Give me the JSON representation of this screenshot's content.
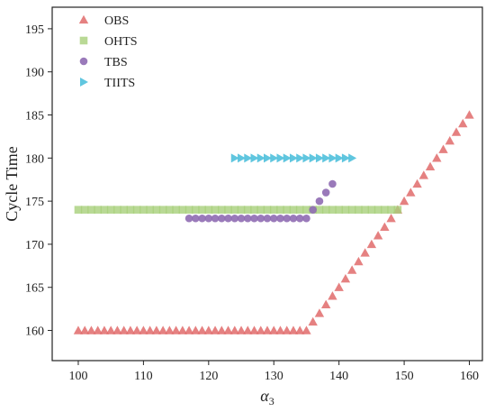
{
  "chart_data": {
    "type": "scatter",
    "xlabel": "α",
    "xlabel_subscript": "3",
    "ylabel": "Cycle Time",
    "xlim": [
      96,
      162
    ],
    "ylim": [
      156.5,
      197.5
    ],
    "xticks": [
      "100",
      "110",
      "120",
      "130",
      "140",
      "150",
      "160"
    ],
    "yticks": [
      "160",
      "165",
      "170",
      "175",
      "180",
      "185",
      "190",
      "195"
    ],
    "grid": false,
    "legend_position": "top-left",
    "series": [
      {
        "name": "OBS",
        "marker": "triangle-up",
        "color": "#e06b6b",
        "opacity": 0.85,
        "points": [
          [
            100,
            160
          ],
          [
            101,
            160
          ],
          [
            102,
            160
          ],
          [
            103,
            160
          ],
          [
            104,
            160
          ],
          [
            105,
            160
          ],
          [
            106,
            160
          ],
          [
            107,
            160
          ],
          [
            108,
            160
          ],
          [
            109,
            160
          ],
          [
            110,
            160
          ],
          [
            111,
            160
          ],
          [
            112,
            160
          ],
          [
            113,
            160
          ],
          [
            114,
            160
          ],
          [
            115,
            160
          ],
          [
            116,
            160
          ],
          [
            117,
            160
          ],
          [
            118,
            160
          ],
          [
            119,
            160
          ],
          [
            120,
            160
          ],
          [
            121,
            160
          ],
          [
            122,
            160
          ],
          [
            123,
            160
          ],
          [
            124,
            160
          ],
          [
            125,
            160
          ],
          [
            126,
            160
          ],
          [
            127,
            160
          ],
          [
            128,
            160
          ],
          [
            129,
            160
          ],
          [
            130,
            160
          ],
          [
            131,
            160
          ],
          [
            132,
            160
          ],
          [
            133,
            160
          ],
          [
            134,
            160
          ],
          [
            135,
            160
          ],
          [
            136,
            161
          ],
          [
            137,
            162
          ],
          [
            138,
            163
          ],
          [
            139,
            164
          ],
          [
            140,
            165
          ],
          [
            141,
            166
          ],
          [
            142,
            167
          ],
          [
            143,
            168
          ],
          [
            144,
            169
          ],
          [
            145,
            170
          ],
          [
            146,
            171
          ],
          [
            147,
            172
          ],
          [
            148,
            173
          ],
          [
            149,
            174
          ],
          [
            150,
            175
          ],
          [
            151,
            176
          ],
          [
            152,
            177
          ],
          [
            153,
            178
          ],
          [
            154,
            179
          ],
          [
            155,
            180
          ],
          [
            156,
            181
          ],
          [
            157,
            182
          ],
          [
            158,
            183
          ],
          [
            159,
            184
          ],
          [
            160,
            185
          ]
        ]
      },
      {
        "name": "OHTS",
        "marker": "square",
        "color": "#a8cf7a",
        "opacity": 0.8,
        "points": [
          [
            100,
            174
          ],
          [
            101,
            174
          ],
          [
            102,
            174
          ],
          [
            103,
            174
          ],
          [
            104,
            174
          ],
          [
            105,
            174
          ],
          [
            106,
            174
          ],
          [
            107,
            174
          ],
          [
            108,
            174
          ],
          [
            109,
            174
          ],
          [
            110,
            174
          ],
          [
            111,
            174
          ],
          [
            112,
            174
          ],
          [
            113,
            174
          ],
          [
            114,
            174
          ],
          [
            115,
            174
          ],
          [
            116,
            174
          ],
          [
            117,
            174
          ],
          [
            118,
            174
          ],
          [
            119,
            174
          ],
          [
            120,
            174
          ],
          [
            121,
            174
          ],
          [
            122,
            174
          ],
          [
            123,
            174
          ],
          [
            124,
            174
          ],
          [
            125,
            174
          ],
          [
            126,
            174
          ],
          [
            127,
            174
          ],
          [
            128,
            174
          ],
          [
            129,
            174
          ],
          [
            130,
            174
          ],
          [
            131,
            174
          ],
          [
            132,
            174
          ],
          [
            133,
            174
          ],
          [
            134,
            174
          ],
          [
            135,
            174
          ],
          [
            136,
            174
          ],
          [
            137,
            174
          ],
          [
            138,
            174
          ],
          [
            139,
            174
          ],
          [
            140,
            174
          ],
          [
            141,
            174
          ],
          [
            142,
            174
          ],
          [
            143,
            174
          ],
          [
            144,
            174
          ],
          [
            145,
            174
          ],
          [
            146,
            174
          ],
          [
            147,
            174
          ],
          [
            148,
            174
          ],
          [
            149,
            174
          ]
        ]
      },
      {
        "name": "TBS",
        "marker": "circle",
        "color": "#8f6bb3",
        "opacity": 0.9,
        "points": [
          [
            117,
            173
          ],
          [
            118,
            173
          ],
          [
            119,
            173
          ],
          [
            120,
            173
          ],
          [
            121,
            173
          ],
          [
            122,
            173
          ],
          [
            123,
            173
          ],
          [
            124,
            173
          ],
          [
            125,
            173
          ],
          [
            126,
            173
          ],
          [
            127,
            173
          ],
          [
            128,
            173
          ],
          [
            129,
            173
          ],
          [
            130,
            173
          ],
          [
            131,
            173
          ],
          [
            132,
            173
          ],
          [
            133,
            173
          ],
          [
            134,
            173
          ],
          [
            135,
            173
          ],
          [
            136,
            174
          ],
          [
            137,
            175
          ],
          [
            138,
            176
          ],
          [
            139,
            177
          ]
        ]
      },
      {
        "name": "TIITS",
        "marker": "triangle-right",
        "color": "#4fc0dc",
        "opacity": 0.9,
        "points": [
          [
            124,
            180
          ],
          [
            125,
            180
          ],
          [
            126,
            180
          ],
          [
            127,
            180
          ],
          [
            128,
            180
          ],
          [
            129,
            180
          ],
          [
            130,
            180
          ],
          [
            131,
            180
          ],
          [
            132,
            180
          ],
          [
            133,
            180
          ],
          [
            134,
            180
          ],
          [
            135,
            180
          ],
          [
            136,
            180
          ],
          [
            137,
            180
          ],
          [
            138,
            180
          ],
          [
            139,
            180
          ],
          [
            140,
            180
          ],
          [
            141,
            180
          ],
          [
            142,
            180
          ]
        ]
      }
    ]
  }
}
